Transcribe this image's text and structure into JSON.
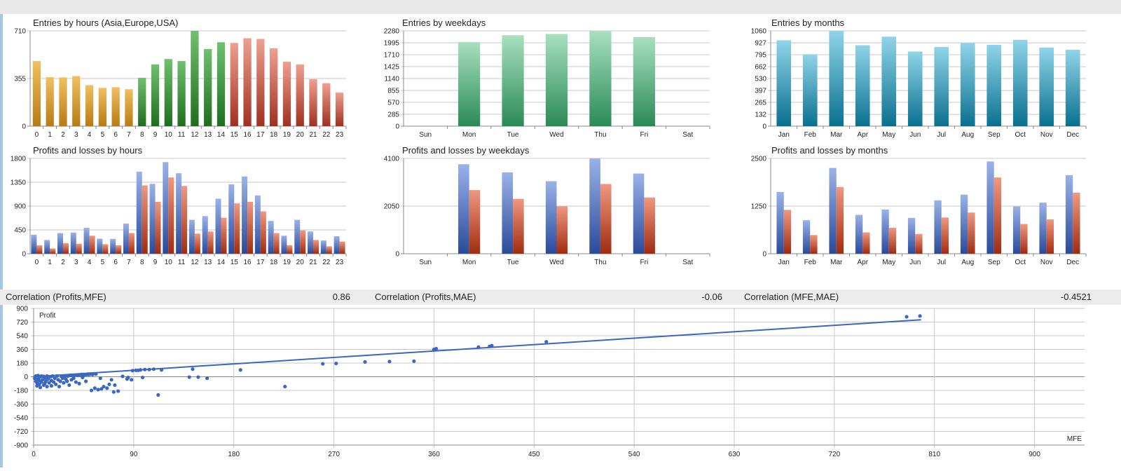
{
  "colors": {
    "hours_asia": [
      "#f0c060",
      "#b87a14"
    ],
    "hours_europe": [
      "#70c070",
      "#1e6e1e"
    ],
    "hours_usa": [
      "#eea090",
      "#a03020"
    ],
    "weekdays": [
      "#a8e0c0",
      "#2a8a55"
    ],
    "months": [
      "#90d4e8",
      "#0a7090"
    ],
    "profit": [
      "#9ab2e8",
      "#2a4a9a"
    ],
    "loss": [
      "#f09880",
      "#a02c10"
    ],
    "scatter": "#3a66c4"
  },
  "charts": {
    "hours": {
      "chart_data": {
        "type": "bar",
        "title": "Entries by hours (Asia,Europe,USA)",
        "categories": [
          "0",
          "1",
          "2",
          "3",
          "4",
          "5",
          "6",
          "7",
          "8",
          "9",
          "10",
          "11",
          "12",
          "13",
          "14",
          "15",
          "16",
          "17",
          "18",
          "19",
          "20",
          "21",
          "22",
          "23"
        ],
        "values": [
          485,
          365,
          363,
          373,
          305,
          285,
          290,
          275,
          360,
          460,
          500,
          485,
          710,
          575,
          625,
          620,
          655,
          650,
          580,
          480,
          460,
          350,
          320,
          250
        ],
        "ylim": [
          0,
          710
        ],
        "yticks": [
          0,
          355,
          710
        ]
      }
    },
    "weekdays": {
      "chart_data": {
        "type": "bar",
        "title": "Entries by weekdays",
        "categories": [
          "Sun",
          "Mon",
          "Tue",
          "Wed",
          "Thu",
          "Fri",
          "Sat"
        ],
        "values": [
          0,
          2010,
          2175,
          2205,
          2270,
          2130,
          0
        ],
        "ylim": [
          0,
          2280
        ],
        "yticks": [
          0,
          285,
          570,
          855,
          1140,
          1425,
          1710,
          1995,
          2280
        ]
      }
    },
    "months": {
      "chart_data": {
        "type": "bar",
        "title": "Entries by months",
        "categories": [
          "Jan",
          "Feb",
          "Mar",
          "Apr",
          "May",
          "Jun",
          "Jul",
          "Aug",
          "Sep",
          "Oct",
          "Nov",
          "Dec"
        ],
        "values": [
          955,
          800,
          1060,
          900,
          995,
          830,
          880,
          925,
          905,
          960,
          875,
          850
        ],
        "ylim": [
          0,
          1060
        ],
        "yticks": [
          0,
          132,
          265,
          397,
          530,
          662,
          795,
          927,
          1060
        ]
      }
    },
    "pl_hours": {
      "chart_data": {
        "type": "bar",
        "title": "Profits and losses by hours",
        "categories": [
          "0",
          "1",
          "2",
          "3",
          "4",
          "5",
          "6",
          "7",
          "8",
          "9",
          "10",
          "11",
          "12",
          "13",
          "14",
          "15",
          "16",
          "17",
          "18",
          "19",
          "20",
          "21",
          "22",
          "23"
        ],
        "series": [
          {
            "values": [
              360,
              260,
              390,
              400,
              490,
              285,
              280,
              570,
              1550,
              1320,
              1730,
              1520,
              640,
              710,
              1040,
              1310,
              1460,
              1100,
              620,
              340,
              640,
              420,
              250,
              330
            ]
          },
          {
            "values": [
              160,
              100,
              200,
              190,
              340,
              180,
              160,
              390,
              1290,
              980,
              1440,
              1280,
              380,
              420,
              680,
              950,
              980,
              800,
              390,
              160,
              440,
              260,
              140,
              230
            ]
          }
        ],
        "ylim": [
          0,
          1800
        ],
        "yticks": [
          0,
          450,
          900,
          1350,
          1800
        ]
      }
    },
    "pl_weekdays": {
      "chart_data": {
        "type": "bar",
        "title": "Profits and losses by weekdays",
        "categories": [
          "Sun",
          "Mon",
          "Tue",
          "Wed",
          "Thu",
          "Fri",
          "Sat"
        ],
        "series": [
          {
            "values": [
              0,
              3850,
              3500,
              3120,
              4100,
              3450,
              0
            ]
          },
          {
            "values": [
              0,
              2740,
              2360,
              2040,
              3000,
              2420,
              0
            ]
          }
        ],
        "ylim": [
          0,
          4100
        ],
        "yticks": [
          0,
          2050,
          4100
        ]
      }
    },
    "pl_months": {
      "chart_data": {
        "type": "bar",
        "title": "Profits and losses by months",
        "categories": [
          "Jan",
          "Feb",
          "Mar",
          "Apr",
          "May",
          "Jun",
          "Jul",
          "Aug",
          "Sep",
          "Oct",
          "Nov",
          "Dec"
        ],
        "series": [
          {
            "values": [
              1620,
              880,
              2250,
              1020,
              1160,
              940,
              1400,
              1550,
              2420,
              1240,
              1340,
              2060
            ]
          },
          {
            "values": [
              1150,
              490,
              1750,
              560,
              680,
              520,
              950,
              1080,
              2000,
              780,
              900,
              1600
            ]
          }
        ],
        "ylim": [
          0,
          2500
        ],
        "yticks": [
          0,
          1250,
          2500
        ]
      }
    }
  },
  "correlations": [
    {
      "label": "Correlation (Profits,MFE)",
      "value": "0.86"
    },
    {
      "label": "Correlation (Profits,MAE)",
      "value": "-0.06"
    },
    {
      "label": "Correlation (MFE,MAE)",
      "value": "-0.4521"
    }
  ],
  "scatter": {
    "chart_data": {
      "type": "scatter",
      "ylabel": "Profit",
      "xlabel": "MFE",
      "xlim": [
        0,
        945
      ],
      "ylim": [
        -900,
        900
      ],
      "xticks": [
        0,
        90,
        180,
        270,
        360,
        450,
        540,
        630,
        720,
        810,
        900
      ],
      "yticks": [
        900,
        720,
        540,
        360,
        180,
        0,
        -180,
        -360,
        -540,
        -720,
        -900
      ],
      "trendline": [
        [
          0,
          0
        ],
        [
          798,
          750
        ]
      ],
      "points": [
        [
          1,
          -20
        ],
        [
          2,
          -60
        ],
        [
          2,
          10
        ],
        [
          3,
          -120
        ],
        [
          3,
          -80
        ],
        [
          4,
          -30
        ],
        [
          4,
          15
        ],
        [
          5,
          -100
        ],
        [
          5,
          -50
        ],
        [
          6,
          0
        ],
        [
          6,
          -140
        ],
        [
          7,
          -70
        ],
        [
          7,
          10
        ],
        [
          8,
          -40
        ],
        [
          9,
          -110
        ],
        [
          9,
          5
        ],
        [
          10,
          -20
        ],
        [
          10,
          -90
        ],
        [
          11,
          -60
        ],
        [
          12,
          10
        ],
        [
          12,
          -130
        ],
        [
          13,
          -30
        ],
        [
          14,
          -80
        ],
        [
          15,
          0
        ],
        [
          16,
          -120
        ],
        [
          16,
          -50
        ],
        [
          17,
          10
        ],
        [
          18,
          -70
        ],
        [
          19,
          -20
        ],
        [
          20,
          -100
        ],
        [
          21,
          10
        ],
        [
          22,
          -40
        ],
        [
          23,
          -130
        ],
        [
          24,
          -60
        ],
        [
          25,
          5
        ],
        [
          26,
          -20
        ],
        [
          27,
          -80
        ],
        [
          28,
          10
        ],
        [
          29,
          -30
        ],
        [
          30,
          -60
        ],
        [
          31,
          10
        ],
        [
          32,
          -110
        ],
        [
          33,
          20
        ],
        [
          34,
          -40
        ],
        [
          35,
          15
        ],
        [
          36,
          -20
        ],
        [
          37,
          20
        ],
        [
          38,
          -70
        ],
        [
          39,
          25
        ],
        [
          40,
          20
        ],
        [
          41,
          -90
        ],
        [
          42,
          25
        ],
        [
          43,
          30
        ],
        [
          44,
          -10
        ],
        [
          45,
          30
        ],
        [
          46,
          25
        ],
        [
          47,
          -60
        ],
        [
          48,
          30
        ],
        [
          49,
          35
        ],
        [
          50,
          30
        ],
        [
          51,
          35
        ],
        [
          52,
          -180
        ],
        [
          53,
          30
        ],
        [
          55,
          -150
        ],
        [
          56,
          35
        ],
        [
          58,
          -170
        ],
        [
          60,
          -20
        ],
        [
          61,
          -160
        ],
        [
          63,
          -130
        ],
        [
          66,
          -150
        ],
        [
          68,
          -100
        ],
        [
          70,
          -40
        ],
        [
          72,
          -200
        ],
        [
          73,
          -110
        ],
        [
          76,
          -190
        ],
        [
          80,
          5
        ],
        [
          84,
          -30
        ],
        [
          85,
          -10
        ],
        [
          88,
          -40
        ],
        [
          89,
          80
        ],
        [
          92,
          85
        ],
        [
          94,
          85
        ],
        [
          96,
          90
        ],
        [
          98,
          -10
        ],
        [
          100,
          95
        ],
        [
          104,
          95
        ],
        [
          108,
          100
        ],
        [
          112,
          -240
        ],
        [
          115,
          90
        ],
        [
          140,
          -5
        ],
        [
          148,
          -5
        ],
        [
          143,
          100
        ],
        [
          156,
          -20
        ],
        [
          186,
          90
        ],
        [
          226,
          -130
        ],
        [
          260,
          170
        ],
        [
          272,
          175
        ],
        [
          298,
          195
        ],
        [
          320,
          200
        ],
        [
          342,
          205
        ],
        [
          360,
          360
        ],
        [
          362,
          370
        ],
        [
          400,
          390
        ],
        [
          410,
          400
        ],
        [
          412,
          410
        ],
        [
          461,
          460
        ],
        [
          785,
          790
        ],
        [
          797,
          800
        ]
      ]
    }
  }
}
